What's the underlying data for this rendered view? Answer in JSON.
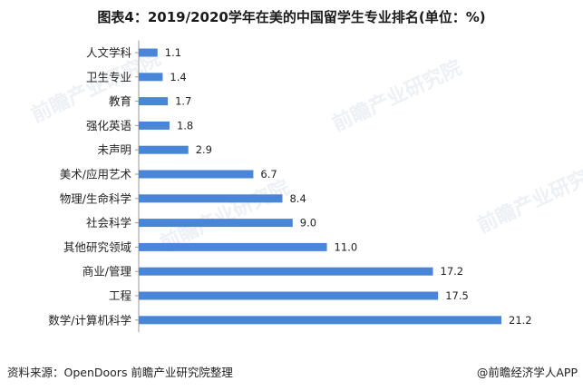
{
  "title": "图表4：2019/2020学年在美的中国留学生专业排名(单位：%)",
  "watermark_text": "前瞻产业研究院",
  "footer": {
    "source": "资料来源：OpenDoors 前瞻产业研究院整理",
    "brand": "@前瞻经济学人APP"
  },
  "colors": {
    "bar": "#4a86d8",
    "axis": "#9a9a9a"
  },
  "chart_data": {
    "type": "bar",
    "orientation": "horizontal",
    "title": "图表4：2019/2020学年在美的中国留学生专业排名(单位：%)",
    "categories": [
      "人文学科",
      "卫生专业",
      "教育",
      "强化英语",
      "未声明",
      "美术/应用艺术",
      "物理/生命科学",
      "社会科学",
      "其他研究领域",
      "商业/管理",
      "工程",
      "数学/计算机科学"
    ],
    "values": [
      1.1,
      1.4,
      1.7,
      1.8,
      2.9,
      6.7,
      8.4,
      9.0,
      11.0,
      17.2,
      17.5,
      21.2
    ],
    "value_labels": [
      "1.1",
      "1.4",
      "1.7",
      "1.8",
      "2.9",
      "6.7",
      "8.4",
      "9.0",
      "11.0",
      "17.2",
      "17.5",
      "21.2"
    ],
    "xlim": [
      0,
      21.2
    ],
    "grid": false,
    "legend": "none"
  }
}
